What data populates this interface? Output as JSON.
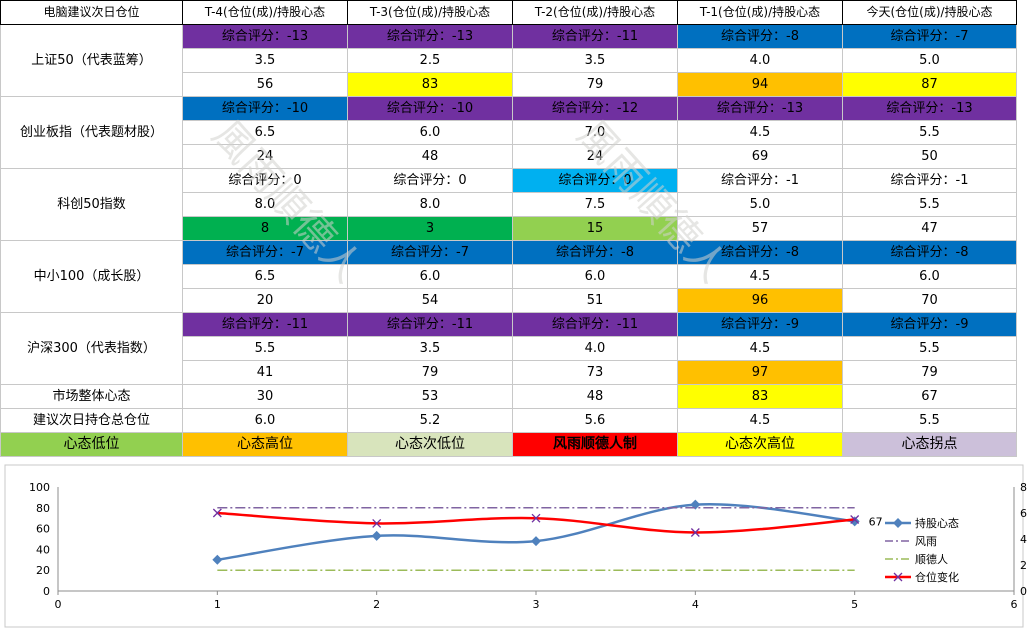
{
  "table": {
    "header": [
      "电脑建议次日仓位",
      "T-4(仓位(成)/持股心态",
      "T-3(仓位(成)/持股心态",
      "T-2(仓位(成)/持股心态",
      "T-1(仓位(成)/持股心态",
      "今天(仓位(成)/持股心态"
    ],
    "indices": [
      {
        "name": "上证50（代表蓝筹）",
        "scores": [
          "综合评分：-13",
          "综合评分：-13",
          "综合评分：-11",
          "综合评分：-8",
          "综合评分：-7"
        ],
        "score_colors": [
          "#7030A0",
          "#7030A0",
          "#7030A0",
          "#0070C0",
          "#0070C0"
        ],
        "positions": [
          "3.5",
          "2.5",
          "3.5",
          "4.0",
          "5.0"
        ],
        "moods": [
          "56",
          "83",
          "79",
          "94",
          "87"
        ],
        "mood_colors": [
          "#FFFFFF",
          "#FFFF00",
          "#FFFFFF",
          "#FFC000",
          "#FFFF00"
        ]
      },
      {
        "name": "创业板指（代表题材股）",
        "scores": [
          "综合评分：-10",
          "综合评分：-10",
          "综合评分：-12",
          "综合评分：-13",
          "综合评分：-13"
        ],
        "score_colors": [
          "#0070C0",
          "#7030A0",
          "#7030A0",
          "#7030A0",
          "#7030A0"
        ],
        "positions": [
          "6.5",
          "6.0",
          "7.0",
          "4.5",
          "5.5"
        ],
        "moods": [
          "24",
          "48",
          "24",
          "69",
          "50"
        ],
        "mood_colors": [
          "#FFFFFF",
          "#FFFFFF",
          "#FFFFFF",
          "#FFFFFF",
          "#FFFFFF"
        ]
      },
      {
        "name": "科创50指数",
        "scores": [
          "综合评分：0",
          "综合评分：0",
          "综合评分：0",
          "综合评分：-1",
          "综合评分：-1"
        ],
        "score_colors": [
          "#FFFFFF",
          "#FFFFFF",
          "#00B0F0",
          "#FFFFFF",
          "#FFFFFF"
        ],
        "positions": [
          "8.0",
          "8.0",
          "7.5",
          "5.0",
          "5.5"
        ],
        "moods": [
          "8",
          "3",
          "15",
          "57",
          "47"
        ],
        "mood_colors": [
          "#00B050",
          "#00B050",
          "#92D050",
          "#FFFFFF",
          "#FFFFFF"
        ]
      },
      {
        "name": "中小100（成长股）",
        "scores": [
          "综合评分：-7",
          "综合评分：-7",
          "综合评分：-8",
          "综合评分：-8",
          "综合评分：-8"
        ],
        "score_colors": [
          "#0070C0",
          "#0070C0",
          "#0070C0",
          "#0070C0",
          "#0070C0"
        ],
        "positions": [
          "6.5",
          "6.0",
          "6.0",
          "4.5",
          "6.0"
        ],
        "moods": [
          "20",
          "54",
          "51",
          "96",
          "70"
        ],
        "mood_colors": [
          "#FFFFFF",
          "#FFFFFF",
          "#FFFFFF",
          "#FFC000",
          "#FFFFFF"
        ]
      },
      {
        "name": "沪深300（代表指数）",
        "scores": [
          "综合评分：-11",
          "综合评分：-11",
          "综合评分：-11",
          "综合评分：-9",
          "综合评分：-9"
        ],
        "score_colors": [
          "#7030A0",
          "#7030A0",
          "#7030A0",
          "#0070C0",
          "#0070C0"
        ],
        "positions": [
          "5.5",
          "3.5",
          "4.0",
          "4.5",
          "5.5"
        ],
        "moods": [
          "41",
          "79",
          "73",
          "97",
          "79"
        ],
        "mood_colors": [
          "#FFFFFF",
          "#FFFFFF",
          "#FFFFFF",
          "#FFC000",
          "#FFFFFF"
        ]
      }
    ],
    "market_mood": {
      "label": "市场整体心态",
      "values": [
        "30",
        "53",
        "48",
        "83",
        "67"
      ],
      "colors": [
        "#FFFFFF",
        "#FFFFFF",
        "#FFFFFF",
        "#FFFF00",
        "#FFFFFF"
      ]
    },
    "total_position": {
      "label": "建议次日持仓总仓位",
      "values": [
        "6.0",
        "5.2",
        "5.6",
        "4.5",
        "5.5"
      ]
    },
    "legend": [
      {
        "label": "心态低位",
        "color": "#92D050"
      },
      {
        "label": "心态高位",
        "color": "#FFC000"
      },
      {
        "label": "心态次低位",
        "color": "#D8E4BC"
      },
      {
        "label": "风雨顺德人制",
        "color": "#FF0000"
      },
      {
        "label": "心态次高位",
        "color": "#FFFF00"
      },
      {
        "label": "心态拐点",
        "color": "#CCC0DA"
      }
    ]
  },
  "watermark_text": "風雨順德人",
  "chart_data": {
    "type": "line",
    "x": [
      1,
      2,
      3,
      4,
      5
    ],
    "xlim": [
      0,
      6
    ],
    "xticks": [
      "0",
      "1",
      "2",
      "3",
      "4",
      "5",
      "6"
    ],
    "ylim": [
      0,
      100
    ],
    "yticks": [
      "0",
      "20",
      "40",
      "60",
      "80",
      "100"
    ],
    "y2lim": [
      0,
      8
    ],
    "y2ticks": [
      "0",
      "2",
      "4",
      "6",
      "8"
    ],
    "series": [
      {
        "name": "持股心态",
        "values": [
          30,
          53,
          48,
          83,
          67
        ],
        "axis": "left",
        "color": "#4F81BD",
        "marker": "diamond",
        "last_label": "67"
      },
      {
        "name": "风雨",
        "values": [
          80,
          80,
          80,
          80,
          80
        ],
        "axis": "left",
        "color": "#8064A2",
        "style": "dash-dot"
      },
      {
        "name": "顺德人",
        "values": [
          20,
          20,
          20,
          20,
          20
        ],
        "axis": "left",
        "color": "#9BBB59",
        "style": "dash-dot"
      },
      {
        "name": "仓位变化",
        "values": [
          6.0,
          5.2,
          5.6,
          4.5,
          5.5
        ],
        "axis": "right",
        "color": "#FF0000",
        "marker": "x"
      }
    ],
    "legend_position": "right",
    "grid": false
  }
}
